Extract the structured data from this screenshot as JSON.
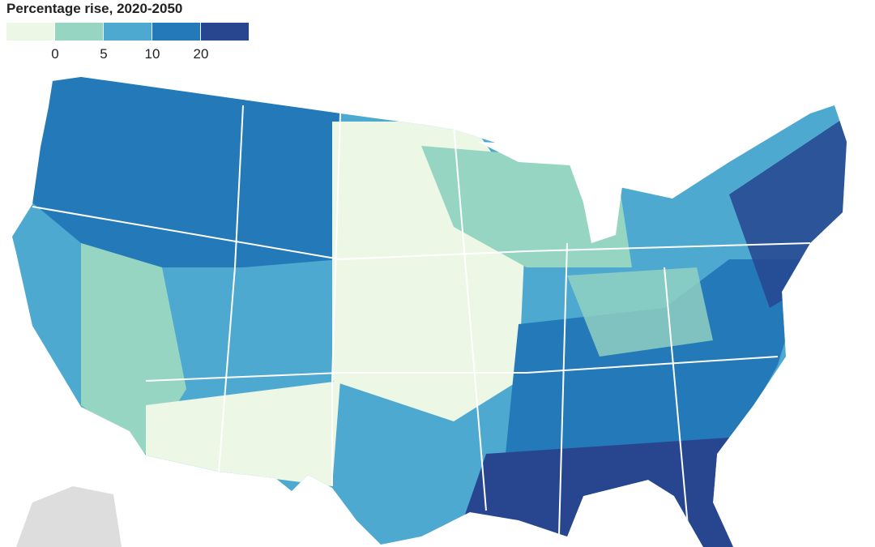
{
  "legend": {
    "title": "Percentage rise, 2020-2050",
    "colors": [
      "#edf7e6",
      "#96d5c1",
      "#4ea9d0",
      "#2479b9",
      "#27468f"
    ],
    "ticks": [
      0,
      5,
      10,
      20
    ]
  }
}
